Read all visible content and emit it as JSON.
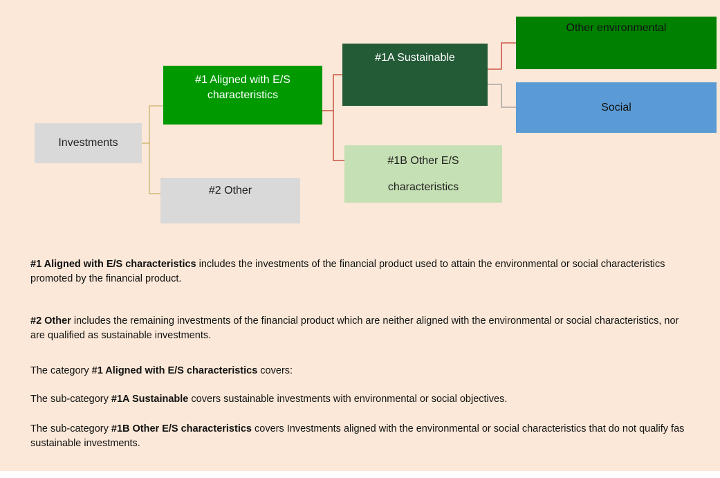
{
  "nodes": [
    {
      "label": "Investments"
    },
    {
      "label": "#1 Aligned with E/S characteristics"
    },
    {
      "label": "#2 Other"
    },
    {
      "label": "#1A Sustainable"
    },
    {
      "label": "#1B Other E/S characteristics"
    },
    {
      "label": "Other environmental"
    },
    {
      "label": "Social"
    }
  ],
  "paragraphs": [
    [
      {
        "bold": "#1 Aligned with E/S characteristics"
      },
      {
        "text": " includes the investments of the financial product used to attain the environmental or social characteristics promoted by the financial product."
      }
    ],
    [
      {
        "bold": "#2 Other"
      },
      {
        "text": " includes the remaining investments of the financial product which are neither aligned with the environmental or social characteristics, nor are qualified as sustainable investments."
      }
    ],
    [
      {
        "text": "The category "
      },
      {
        "bold": "#1 Aligned with E/S characteristics"
      },
      {
        "text": " covers:"
      }
    ],
    [
      {
        "text": "The sub-category "
      },
      {
        "bold": "#1A Sustainable"
      },
      {
        "text": " covers sustainable investments with environmental or social objectives."
      }
    ],
    [
      {
        "text": "The sub-category "
      },
      {
        "bold": "#1B Other E/S characteristics"
      },
      {
        "text": " covers Investments aligned with the environmental or social characteristics that do not qualify fas sustainable investments."
      }
    ]
  ]
}
